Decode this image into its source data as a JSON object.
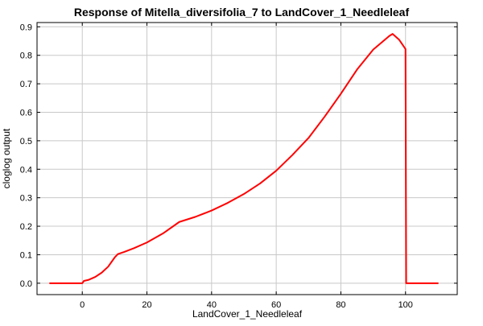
{
  "chart_data": {
    "type": "line",
    "title": "Response of Mitella_diversifolia_7 to LandCover_1_Needleleaf",
    "xlabel": "LandCover_1_Needleleaf",
    "ylabel": "cloglog output",
    "xlim": [
      -14,
      116
    ],
    "ylim": [
      -0.04,
      0.915
    ],
    "xticks": [
      0,
      20,
      40,
      60,
      80,
      100
    ],
    "yticks": [
      0.0,
      0.1,
      0.2,
      0.3,
      0.4,
      0.5,
      0.6,
      0.7,
      0.8,
      0.9
    ],
    "ytick_labels": [
      "0.0",
      "0.1",
      "0.2",
      "0.3",
      "0.4",
      "0.5",
      "0.6",
      "0.7",
      "0.8",
      "0.9"
    ],
    "grid": true,
    "series": [
      {
        "color": "#ff0000",
        "x": [
          -10,
          0,
          0.5,
          2,
          4,
          6,
          8,
          10,
          11,
          13,
          16,
          20,
          25,
          30,
          35,
          40,
          45,
          50,
          55,
          60,
          65,
          70,
          75,
          80,
          85,
          90,
          95,
          96,
          98,
          100,
          100.2,
          105,
          110
        ],
        "y": [
          0.0,
          0.0,
          0.008,
          0.012,
          0.022,
          0.037,
          0.058,
          0.09,
          0.102,
          0.11,
          0.123,
          0.143,
          0.175,
          0.215,
          0.233,
          0.255,
          0.282,
          0.313,
          0.35,
          0.395,
          0.45,
          0.51,
          0.585,
          0.665,
          0.75,
          0.82,
          0.868,
          0.875,
          0.855,
          0.822,
          0.0,
          0.0,
          0.0
        ]
      }
    ]
  }
}
